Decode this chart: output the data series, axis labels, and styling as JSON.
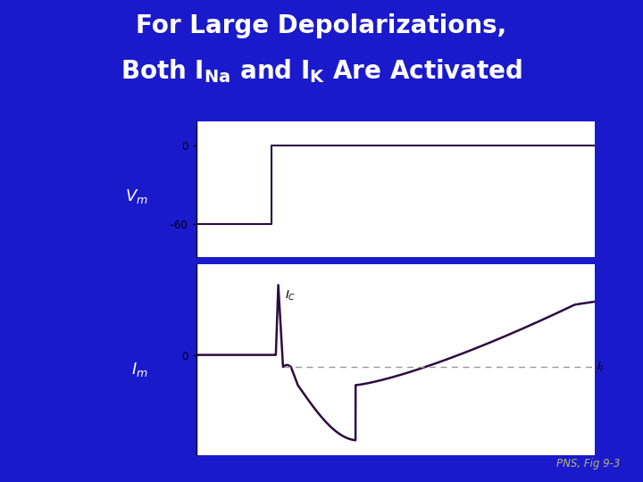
{
  "bg_color": "#1a1acc",
  "title_line1": "For Large Depolarizations,",
  "title_line2": "Both $\\mathregular{I_{Na}}$ and $\\mathregular{I_{K}}$ Are Activated",
  "title_color": "white",
  "title_fontsize": 20,
  "separator_color": "#d4d46a",
  "panel_bg": "white",
  "curve_color": "#2d0a40",
  "pns_label": "PNS, Fig 9-3",
  "pns_color": "#b8b870",
  "dashed_color": "#999999",
  "vm_tick0": "0",
  "vm_tick60": "–60",
  "im_tick0": "0"
}
